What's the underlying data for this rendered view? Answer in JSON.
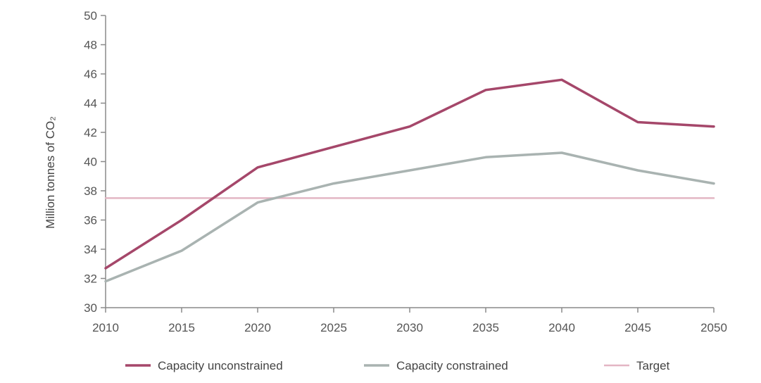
{
  "chart_data": {
    "type": "line",
    "title": "",
    "xlabel": "",
    "ylabel": "Million tonnes of CO₂",
    "x": [
      2010,
      2015,
      2020,
      2025,
      2030,
      2035,
      2040,
      2045,
      2050
    ],
    "xlim": [
      2010,
      2050
    ],
    "ylim": [
      30,
      50
    ],
    "yticks": [
      30,
      32,
      34,
      36,
      38,
      40,
      42,
      44,
      46,
      48,
      50
    ],
    "grid": false,
    "legend_position": "bottom",
    "series": [
      {
        "name": "Capacity unconstrained",
        "color": "#a5476a",
        "values": [
          32.7,
          36.0,
          39.6,
          41.0,
          42.4,
          44.9,
          45.6,
          42.7,
          42.4
        ]
      },
      {
        "name": "Capacity constrained",
        "color": "#a9b3b1",
        "values": [
          31.8,
          33.9,
          37.2,
          38.5,
          39.4,
          40.3,
          40.6,
          39.4,
          38.5
        ]
      },
      {
        "name": "Target",
        "color": "#e3b6c4",
        "values": [
          37.5,
          37.5,
          37.5,
          37.5,
          37.5,
          37.5,
          37.5,
          37.5,
          37.5
        ]
      }
    ]
  }
}
